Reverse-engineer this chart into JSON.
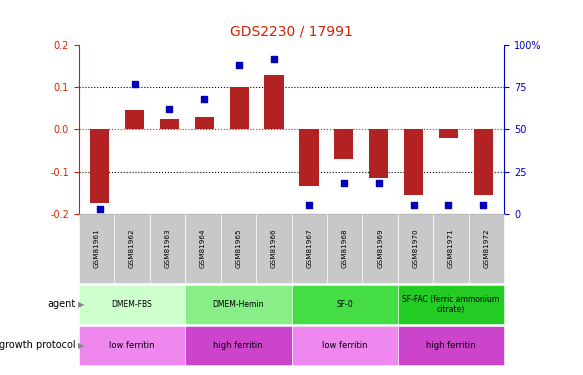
{
  "title": "GDS2230 / 17991",
  "samples": [
    "GSM81961",
    "GSM81962",
    "GSM81963",
    "GSM81964",
    "GSM81965",
    "GSM81966",
    "GSM81967",
    "GSM81968",
    "GSM81969",
    "GSM81970",
    "GSM81971",
    "GSM81972"
  ],
  "log10_ratio": [
    -0.175,
    0.045,
    0.025,
    0.03,
    0.1,
    0.13,
    -0.135,
    -0.07,
    -0.115,
    -0.155,
    -0.02,
    -0.155
  ],
  "percentile_rank": [
    3,
    77,
    62,
    68,
    88,
    92,
    5,
    18,
    18,
    5,
    5,
    5
  ],
  "ylim_left": [
    -0.2,
    0.2
  ],
  "ylim_right": [
    0,
    100
  ],
  "yticks_left": [
    -0.2,
    -0.1,
    0.0,
    0.1,
    0.2
  ],
  "yticks_right": [
    0,
    25,
    50,
    75,
    100
  ],
  "bar_color": "#B22222",
  "dot_color": "#0000BB",
  "tick_color_left": "#CC2200",
  "tick_color_right": "#0000BB",
  "bg_color": "#FFFFFF",
  "sample_bg_color": "#C8C8C8",
  "agent_groups": [
    {
      "label": "DMEM-FBS",
      "cols": [
        0,
        1,
        2
      ],
      "color": "#CCFFCC"
    },
    {
      "label": "DMEM-Hemin",
      "cols": [
        3,
        4,
        5
      ],
      "color": "#88EE88"
    },
    {
      "label": "SF-0",
      "cols": [
        6,
        7,
        8
      ],
      "color": "#44DD44"
    },
    {
      "label": "SF-FAC (ferric ammonium\ncitrate)",
      "cols": [
        9,
        10,
        11
      ],
      "color": "#22CC22"
    }
  ],
  "growth_groups": [
    {
      "label": "low ferritin",
      "cols": [
        0,
        1,
        2
      ],
      "color": "#EE88EE"
    },
    {
      "label": "high ferritin",
      "cols": [
        3,
        4,
        5
      ],
      "color": "#CC44CC"
    },
    {
      "label": "low ferritin",
      "cols": [
        6,
        7,
        8
      ],
      "color": "#EE88EE"
    },
    {
      "label": "high ferritin",
      "cols": [
        9,
        10,
        11
      ],
      "color": "#CC44CC"
    }
  ],
  "legend_red": "#B22222",
  "legend_blue": "#0000BB"
}
